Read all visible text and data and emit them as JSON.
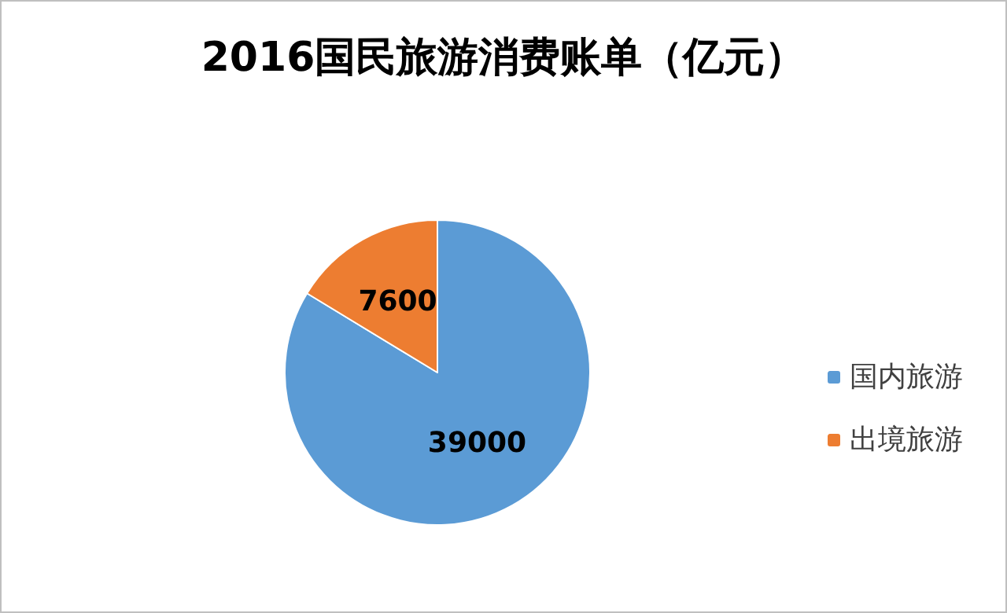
{
  "chart_data": {
    "type": "pie",
    "title": "2016国民旅游消费账单（亿元）",
    "categories": [
      "国内旅游",
      "出境旅游"
    ],
    "values": [
      39000,
      7600
    ],
    "colors": [
      "#5b9bd5",
      "#ed7d31"
    ],
    "data_labels": true,
    "legend": "right"
  }
}
